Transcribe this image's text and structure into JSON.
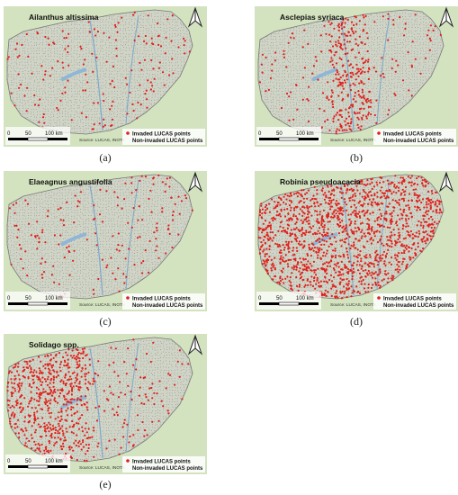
{
  "panels": [
    {
      "id": "a",
      "species": "Ailanthus altissima",
      "caption": "(a)",
      "density": "low",
      "pattern": "scattered"
    },
    {
      "id": "b",
      "species": "Asclepias syriaca",
      "caption": "(b)",
      "density": "medium",
      "pattern": "central-belt"
    },
    {
      "id": "c",
      "species": "Elaeagnus angustifolia",
      "caption": "(c)",
      "density": "low",
      "pattern": "scattered"
    },
    {
      "id": "d",
      "species": "Robinia pseudoacacia",
      "caption": "(d)",
      "density": "very-high",
      "pattern": "widespread"
    },
    {
      "id": "e",
      "species": "Solidago spp.",
      "caption": "(e)",
      "density": "high",
      "pattern": "west"
    }
  ],
  "legend": {
    "invaded": "Invaded LUCAS points",
    "non_invaded": "Non-invaded LUCAS points"
  },
  "scale": {
    "zero": "0",
    "mid": "50",
    "end": "100 km"
  },
  "source": "Source: LUCAS, INOTA",
  "colors": {
    "invaded": "#e0201c",
    "non_invaded": "#555555",
    "country": "#cfd4c6",
    "land": "#d3e2bf",
    "lake": "#8fb6d6",
    "river": "#7da8cc"
  },
  "north_icon": "north-arrow-icon"
}
